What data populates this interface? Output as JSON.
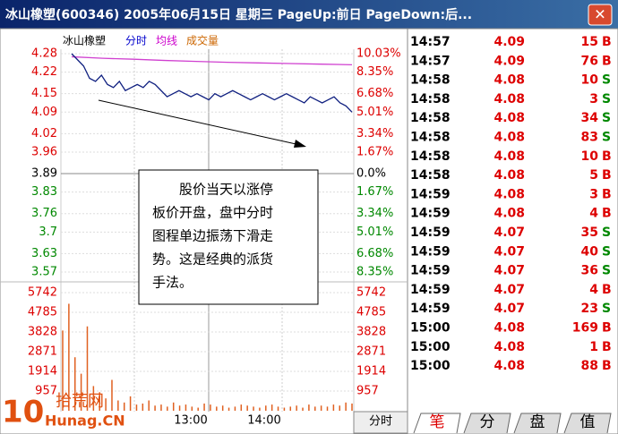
{
  "window": {
    "title": "冰山橡塑(600346) 2005年06月15日 星期三 PageUp:前日 PageDown:后...",
    "close": "✕"
  },
  "chart": {
    "legend": [
      "冰山橡塑",
      "分时",
      "均线",
      "成交量"
    ],
    "price_ylim": [
      3.57,
      4.28
    ],
    "price_ticks": [
      4.28,
      4.22,
      4.15,
      4.09,
      4.02,
      3.96,
      3.89,
      3.83,
      3.76,
      3.7,
      3.63,
      3.57
    ],
    "percent_ticks": [
      "10.03%",
      "8.35%",
      "6.68%",
      "5.01%",
      "3.34%",
      "1.67%",
      "0.0%",
      "1.67%",
      "3.34%",
      "5.01%",
      "6.68%",
      "8.35%"
    ],
    "volume_ylim": [
      0,
      5742
    ],
    "volume_ticks": [
      5742,
      4785,
      3828,
      2871,
      1914,
      957
    ],
    "time_labels": [
      "13:00",
      "14:00"
    ],
    "price": [
      4.28,
      4.26,
      4.24,
      4.2,
      4.19,
      4.21,
      4.18,
      4.17,
      4.19,
      4.16,
      4.17,
      4.18,
      4.17,
      4.19,
      4.18,
      4.16,
      4.14,
      4.15,
      4.16,
      4.15,
      4.14,
      4.15,
      4.14,
      4.13,
      4.15,
      4.14,
      4.15,
      4.16,
      4.15,
      4.14,
      4.13,
      4.14,
      4.15,
      4.14,
      4.13,
      4.14,
      4.15,
      4.14,
      4.13,
      4.12,
      4.14,
      4.13,
      4.12,
      4.13,
      4.14,
      4.12,
      4.11,
      4.09
    ],
    "average": [
      4.27,
      4.265,
      4.262,
      4.258,
      4.255,
      4.252,
      4.25,
      4.248,
      4.246,
      4.244
    ],
    "volume": [
      3900,
      5200,
      2600,
      1800,
      4100,
      1200,
      900,
      600,
      1500,
      500,
      400,
      700,
      300,
      350,
      500,
      250,
      300,
      200,
      400,
      250,
      300,
      200,
      150,
      350,
      300,
      200,
      250,
      150,
      200,
      300,
      250,
      200,
      150,
      250,
      300,
      200,
      150,
      200,
      250,
      150,
      300,
      200,
      250,
      200,
      300,
      250,
      400,
      350
    ],
    "annotation": [
      "　　股价当天以涨停",
      "板价开盘，盘中分时",
      "图程单边振荡下滑走",
      "势。这是经典的派货",
      "手法。"
    ],
    "mode": "分时"
  },
  "trades": [
    [
      "14:57",
      "4.09",
      "15",
      "B"
    ],
    [
      "14:57",
      "4.09",
      "76",
      "B"
    ],
    [
      "14:58",
      "4.08",
      "10",
      "S"
    ],
    [
      "14:58",
      "4.08",
      "3",
      "S"
    ],
    [
      "14:58",
      "4.08",
      "34",
      "S"
    ],
    [
      "14:58",
      "4.08",
      "83",
      "S"
    ],
    [
      "14:58",
      "4.08",
      "10",
      "B"
    ],
    [
      "14:58",
      "4.08",
      "5",
      "B"
    ],
    [
      "14:59",
      "4.08",
      "3",
      "B"
    ],
    [
      "14:59",
      "4.08",
      "4",
      "B"
    ],
    [
      "14:59",
      "4.07",
      "35",
      "S"
    ],
    [
      "14:59",
      "4.07",
      "40",
      "S"
    ],
    [
      "14:59",
      "4.07",
      "36",
      "S"
    ],
    [
      "14:59",
      "4.07",
      "4",
      "B"
    ],
    [
      "14:59",
      "4.07",
      "23",
      "S"
    ],
    [
      "15:00",
      "4.08",
      "169",
      "B"
    ],
    [
      "15:00",
      "4.08",
      "1",
      "B"
    ],
    [
      "15:00",
      "4.08",
      "88",
      "B"
    ]
  ],
  "tabs": [
    "笔",
    "分",
    "盘",
    "值"
  ],
  "logo": {
    "number": "10",
    "name": "拾荒网",
    "url": "Hunag.CN"
  }
}
